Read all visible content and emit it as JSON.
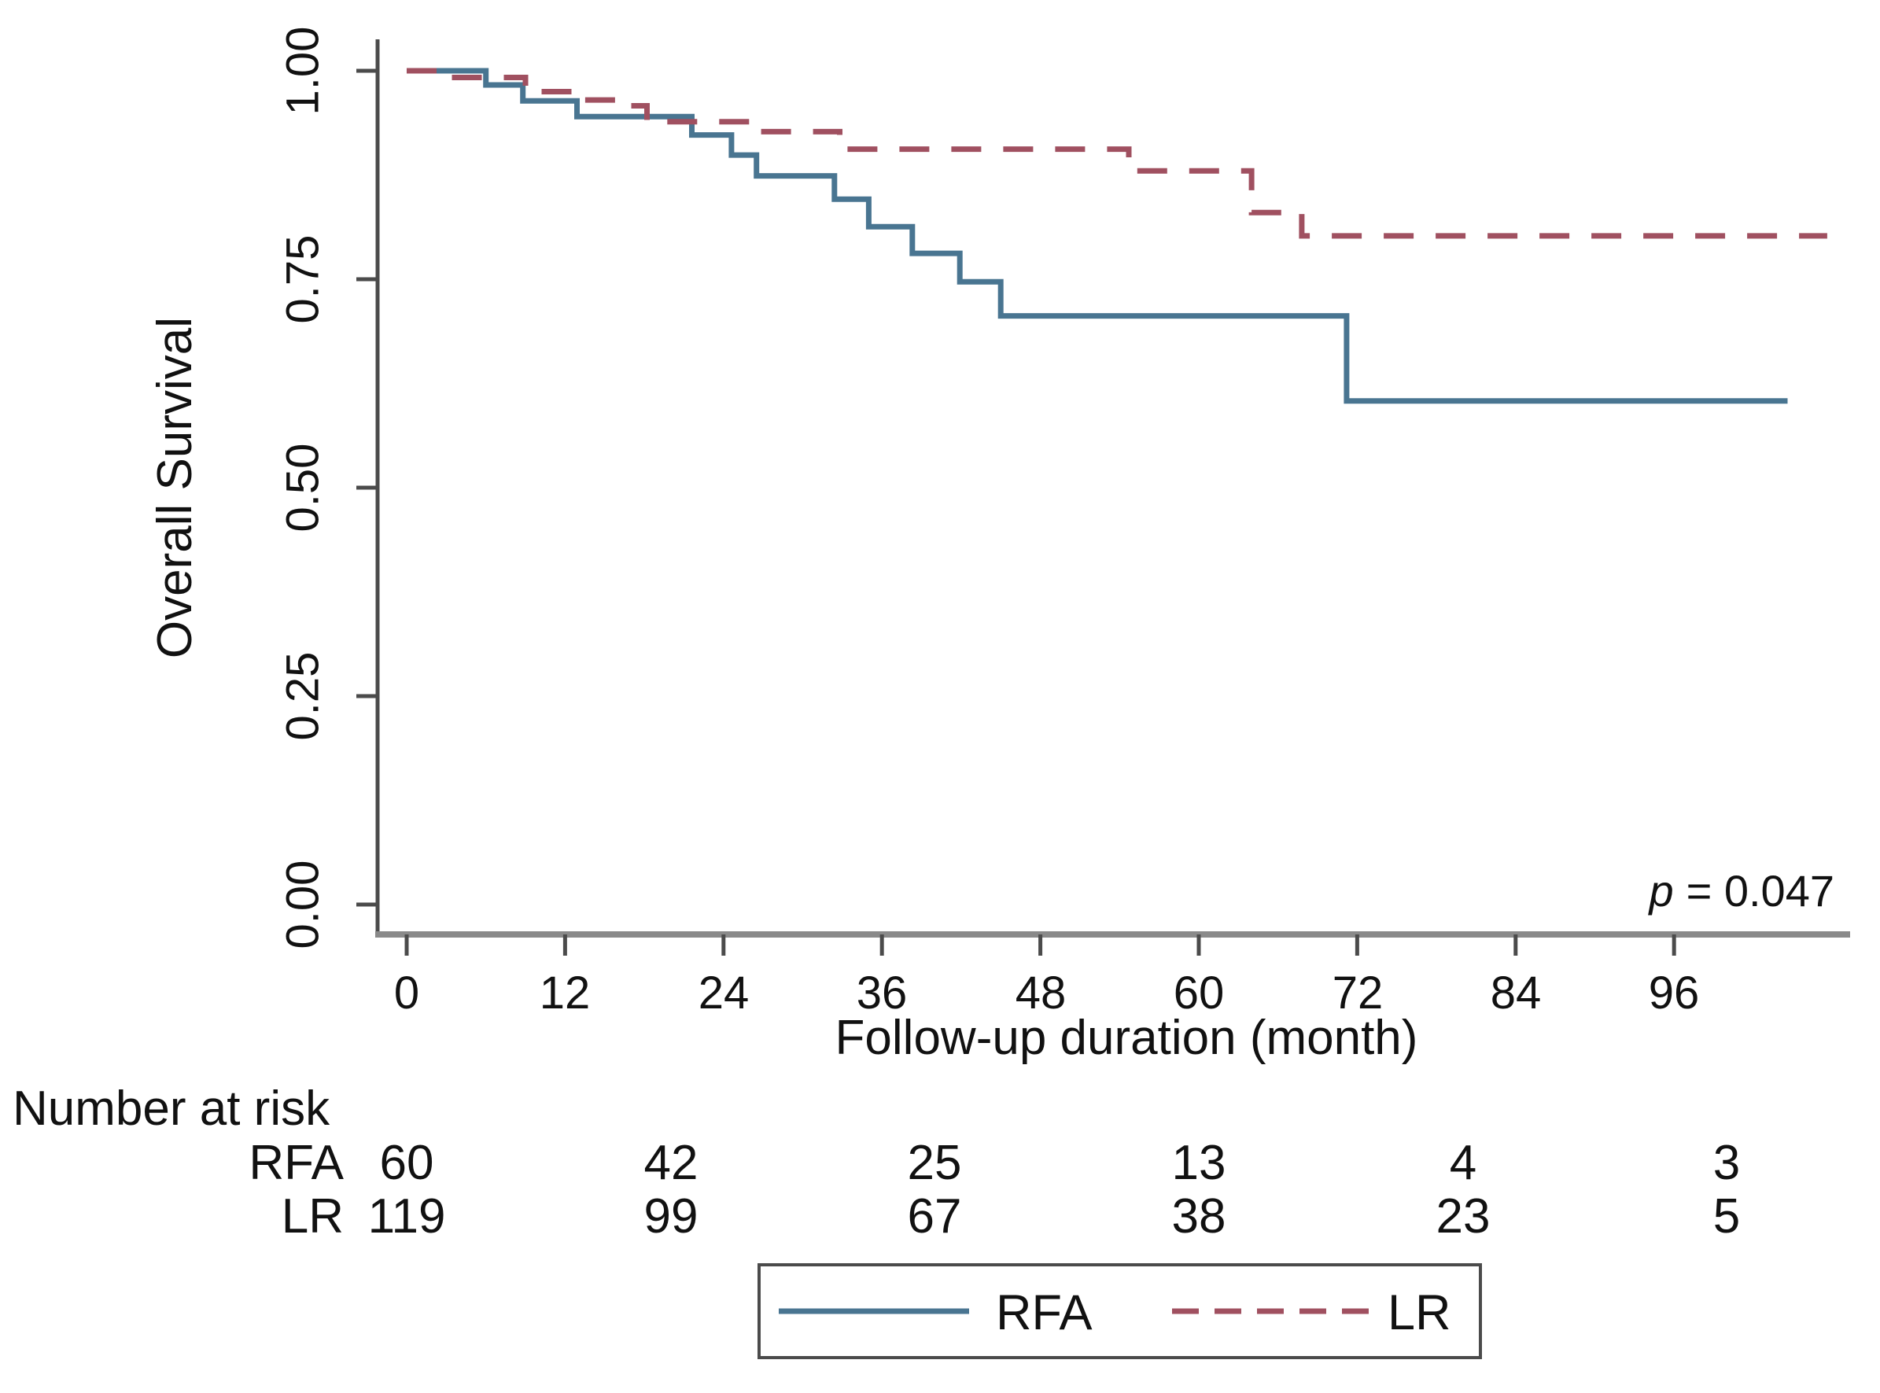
{
  "chart_data": {
    "type": "line",
    "subtype": "kaplan-meier-step",
    "title": "",
    "xlabel": "Follow-up duration (month)",
    "ylabel": "Overall Survival",
    "xlim": [
      0,
      108
    ],
    "ylim": [
      0,
      1
    ],
    "grid": false,
    "x_ticks": [
      0,
      12,
      24,
      36,
      48,
      60,
      72,
      84,
      96
    ],
    "y_tick_labels": [
      "1.00",
      "0.75",
      "0.50",
      "0.25",
      "0.00"
    ],
    "y_tick_values": [
      1.0,
      0.75,
      0.5,
      0.25,
      0.0
    ],
    "p_value": {
      "symbol": "p",
      "suffix": "= 0.047"
    },
    "legend_position": "bottom",
    "series": [
      {
        "name": "RFA",
        "style": "solid",
        "color": "#497591",
        "steps": [
          [
            0,
            1.0
          ],
          [
            6,
            0.983
          ],
          [
            8.8,
            0.964
          ],
          [
            12.9,
            0.945
          ],
          [
            21.6,
            0.923
          ],
          [
            24.6,
            0.899
          ],
          [
            26.5,
            0.874
          ],
          [
            32.4,
            0.846
          ],
          [
            35,
            0.813
          ],
          [
            38.3,
            0.781
          ],
          [
            41.9,
            0.747
          ],
          [
            45,
            0.706
          ],
          [
            71.2,
            0.604
          ]
        ],
        "end_month": 104.6
      },
      {
        "name": "LR",
        "style": "dashed",
        "color": "#a05060",
        "steps": [
          [
            0,
            1.0
          ],
          [
            3,
            0.992
          ],
          [
            9,
            0.975
          ],
          [
            12.6,
            0.965
          ],
          [
            16.3,
            0.958
          ],
          [
            18.2,
            0.939
          ],
          [
            26.7,
            0.927
          ],
          [
            32.8,
            0.906
          ],
          [
            54.7,
            0.88
          ],
          [
            64,
            0.83
          ],
          [
            67.8,
            0.802
          ]
        ],
        "end_month": 107.6
      }
    ],
    "number_at_risk": {
      "header": "Number at risk",
      "time_points": [
        0,
        20,
        40,
        60,
        80,
        100
      ],
      "rows": [
        {
          "label": "RFA",
          "counts": [
            60,
            42,
            25,
            13,
            4,
            3
          ]
        },
        {
          "label": "LR",
          "counts": [
            119,
            99,
            67,
            38,
            23,
            5
          ]
        }
      ]
    },
    "legend": [
      {
        "label": "RFA",
        "style": "solid"
      },
      {
        "label": "LR",
        "style": "dashed"
      }
    ],
    "colors": {
      "rfa_line": "#497591",
      "lr_line": "#a05060",
      "axis_line": "#8a8a8a",
      "tick_line": "#4b4b4b",
      "text": "#111111"
    }
  }
}
